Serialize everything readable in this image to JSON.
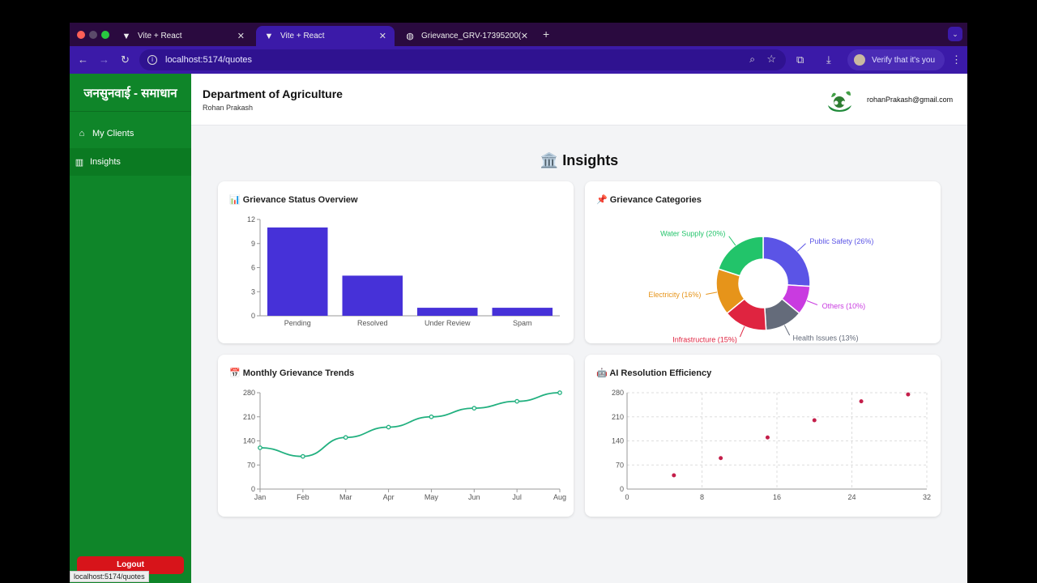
{
  "browser": {
    "tabs": [
      {
        "title": "Vite + React",
        "icon": "vite-icon",
        "active": false
      },
      {
        "title": "Vite + React",
        "icon": "vite-icon",
        "active": true
      },
      {
        "title": "Grievance_GRV-17395200(",
        "icon": "globe-icon",
        "active": false
      }
    ],
    "url": "localhost:5174/quotes",
    "verify_label": "Verify that it's you",
    "status_url": "localhost:5174/quotes"
  },
  "sidebar": {
    "brand": "जनसुनवाई - समाधान",
    "items": [
      {
        "label": "My Clients",
        "icon": "home-icon"
      },
      {
        "label": "Insights",
        "icon": "bar-chart-icon"
      }
    ],
    "logout_label": "Logout"
  },
  "header": {
    "department": "Department of Agriculture",
    "user": "Rohan Prakash",
    "email": "rohanPrakash@gmail.com"
  },
  "page": {
    "title": "🏛️ Insights"
  },
  "cards": {
    "status": {
      "title": "📊 Grievance Status Overview"
    },
    "categories": {
      "title": "📌 Grievance Categories"
    },
    "trends": {
      "title": "📅 Monthly Grievance Trends"
    },
    "efficiency": {
      "title": "🤖 AI Resolution Efficiency"
    }
  },
  "chart_data": [
    {
      "type": "bar",
      "title": "📊 Grievance Status Overview",
      "categories": [
        "Pending",
        "Resolved",
        "Under Review",
        "Spam"
      ],
      "values": [
        11,
        5,
        1,
        1
      ],
      "yticks": [
        0,
        3,
        6,
        9,
        12
      ],
      "ylim": [
        0,
        12
      ],
      "color": "#4631d8"
    },
    {
      "type": "pie",
      "title": "📌 Grievance Categories",
      "labels": [
        "Public Safety (26%)",
        "Others (10%)",
        "Health Issues (13%)",
        "Infrastructure (15%)",
        "Electricity (16%)",
        "Water Supply (20%)"
      ],
      "values": [
        26,
        10,
        13,
        15,
        16,
        20
      ],
      "colors": [
        "#5b54e6",
        "#c93be0",
        "#646b7a",
        "#df2440",
        "#e6941a",
        "#22c46a"
      ]
    },
    {
      "type": "line",
      "title": "📅 Monthly Grievance Trends",
      "categories": [
        "Jan",
        "Feb",
        "Mar",
        "Apr",
        "May",
        "Jun",
        "Jul",
        "Aug"
      ],
      "values": [
        120,
        95,
        150,
        180,
        210,
        235,
        255,
        280
      ],
      "yticks": [
        0,
        70,
        140,
        210,
        280
      ],
      "ylim": [
        0,
        280
      ],
      "color": "#21b07f"
    },
    {
      "type": "scatter",
      "title": "🤖 AI Resolution Efficiency",
      "x": [
        5,
        10,
        15,
        20,
        25,
        30
      ],
      "y": [
        40,
        90,
        150,
        200,
        255,
        275
      ],
      "xticks": [
        0,
        8,
        16,
        24,
        32
      ],
      "yticks": [
        0,
        70,
        140,
        210,
        280
      ],
      "xlim": [
        0,
        32
      ],
      "ylim": [
        0,
        280
      ],
      "grid": true,
      "color": "#c41e4a"
    }
  ]
}
